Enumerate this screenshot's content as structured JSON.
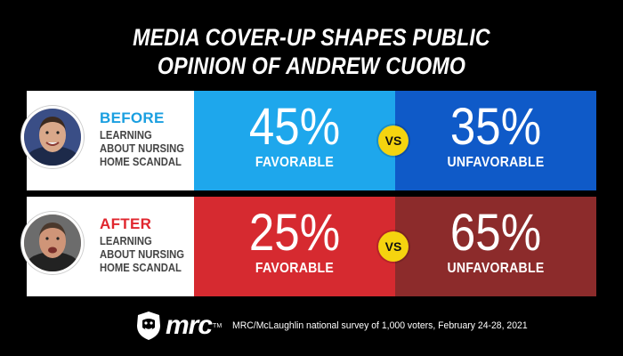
{
  "title": {
    "line1": "MEDIA COVER-UP SHAPES PUBLIC",
    "line2": "OPINION OF ANDREW CUOMO"
  },
  "chart_data": {
    "type": "table",
    "rows": [
      {
        "phase": "BEFORE",
        "description": [
          "LEARNING",
          "ABOUT NURSING",
          "HOME SCANDAL"
        ],
        "favorable_pct": 45,
        "unfavorable_pct": 35,
        "favorable_text": "45%",
        "unfavorable_text": "35%",
        "favorable_label": "FAVORABLE",
        "unfavorable_label": "UNFAVORABLE",
        "vs": "VS"
      },
      {
        "phase": "AFTER",
        "description": [
          "LEARNING",
          "ABOUT NURSING",
          "HOME SCANDAL"
        ],
        "favorable_pct": 25,
        "unfavorable_pct": 65,
        "favorable_text": "25%",
        "unfavorable_text": "65%",
        "favorable_label": "FAVORABLE",
        "unfavorable_label": "UNFAVORABLE",
        "vs": "VS"
      }
    ]
  },
  "colors": {
    "background": "#000000",
    "before_favorable": "#1ea7ec",
    "before_unfavorable": "#0f5ac8",
    "after_favorable": "#d62a30",
    "after_unfavorable": "#8c2b2b",
    "vs_badge": "#f5d40f",
    "before_accent": "#1a9fe0",
    "after_accent": "#e0262e"
  },
  "footer": {
    "logo_text": "mrc",
    "logo_tm": "TM",
    "logo_icon": "bulldog-icon",
    "source": "MRC/McLaughlin national survey of 1,000 voters, February 24-28, 2021"
  }
}
